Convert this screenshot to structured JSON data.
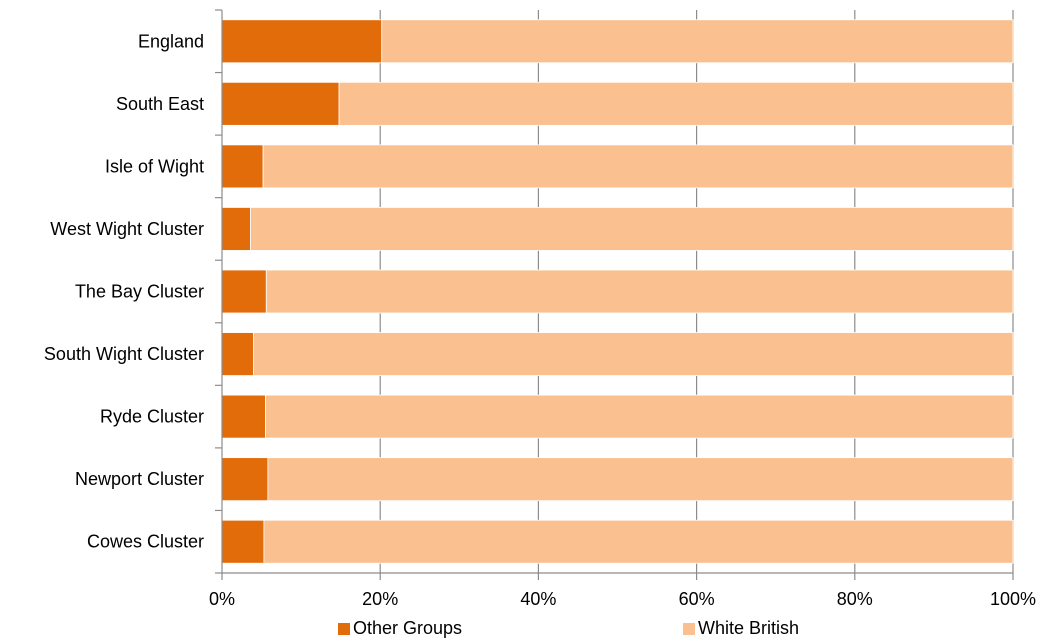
{
  "chart_data": {
    "type": "bar",
    "orientation": "horizontal",
    "stacked": "percent",
    "categories": [
      "England",
      "South East",
      "Isle of Wight",
      "West Wight Cluster",
      "The Bay Cluster",
      "South Wight Cluster",
      "Ryde Cluster",
      "Newport Cluster",
      "Cowes Cluster"
    ],
    "series": [
      {
        "name": "Other Groups",
        "color": "#e36c0a",
        "values": [
          20.2,
          14.8,
          5.2,
          3.6,
          5.6,
          4.0,
          5.5,
          5.8,
          5.3
        ]
      },
      {
        "name": "White British",
        "color": "#fac090",
        "values": [
          79.8,
          85.2,
          94.8,
          96.4,
          94.4,
          96.0,
          94.5,
          94.2,
          94.7
        ]
      }
    ],
    "xlim": [
      0,
      100
    ],
    "x_ticks": [
      "0%",
      "20%",
      "40%",
      "60%",
      "80%",
      "100%"
    ],
    "grid": "vertical",
    "legend_position": "bottom"
  }
}
